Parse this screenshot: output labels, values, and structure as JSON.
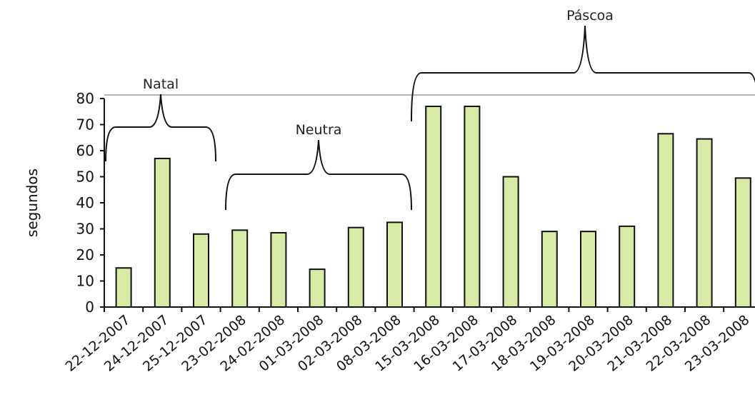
{
  "chart_data": {
    "type": "bar",
    "categories": [
      "22-12-2007",
      "24-12-2007",
      "25-12-2007",
      "23-02-2008",
      "24-02-2008",
      "01-03-2008",
      "02-03-2008",
      "08-03-2008",
      "15-03-2008",
      "16-03-2008",
      "17-03-2008",
      "18-03-2008",
      "19-03-2008",
      "20-03-2008",
      "21-03-2008",
      "22-03-2008",
      "23-03-2008"
    ],
    "values": [
      15,
      57,
      28,
      29.5,
      28.5,
      14.5,
      30.5,
      32.5,
      77,
      77,
      50,
      29,
      29,
      31,
      66.5,
      64.5,
      49.5
    ],
    "ylabel": "segundos",
    "ylim": [
      0,
      80
    ],
    "yticks": [
      "0",
      "10",
      "20",
      "30",
      "40",
      "50",
      "60",
      "70",
      "80"
    ],
    "color": "#d7eaa6",
    "groups": [
      {
        "label": "Natal",
        "from": 0,
        "to": 2
      },
      {
        "label": "Neutra",
        "from": 3,
        "to": 7
      },
      {
        "label": "Páscoa",
        "from": 8,
        "to": 16
      }
    ]
  }
}
